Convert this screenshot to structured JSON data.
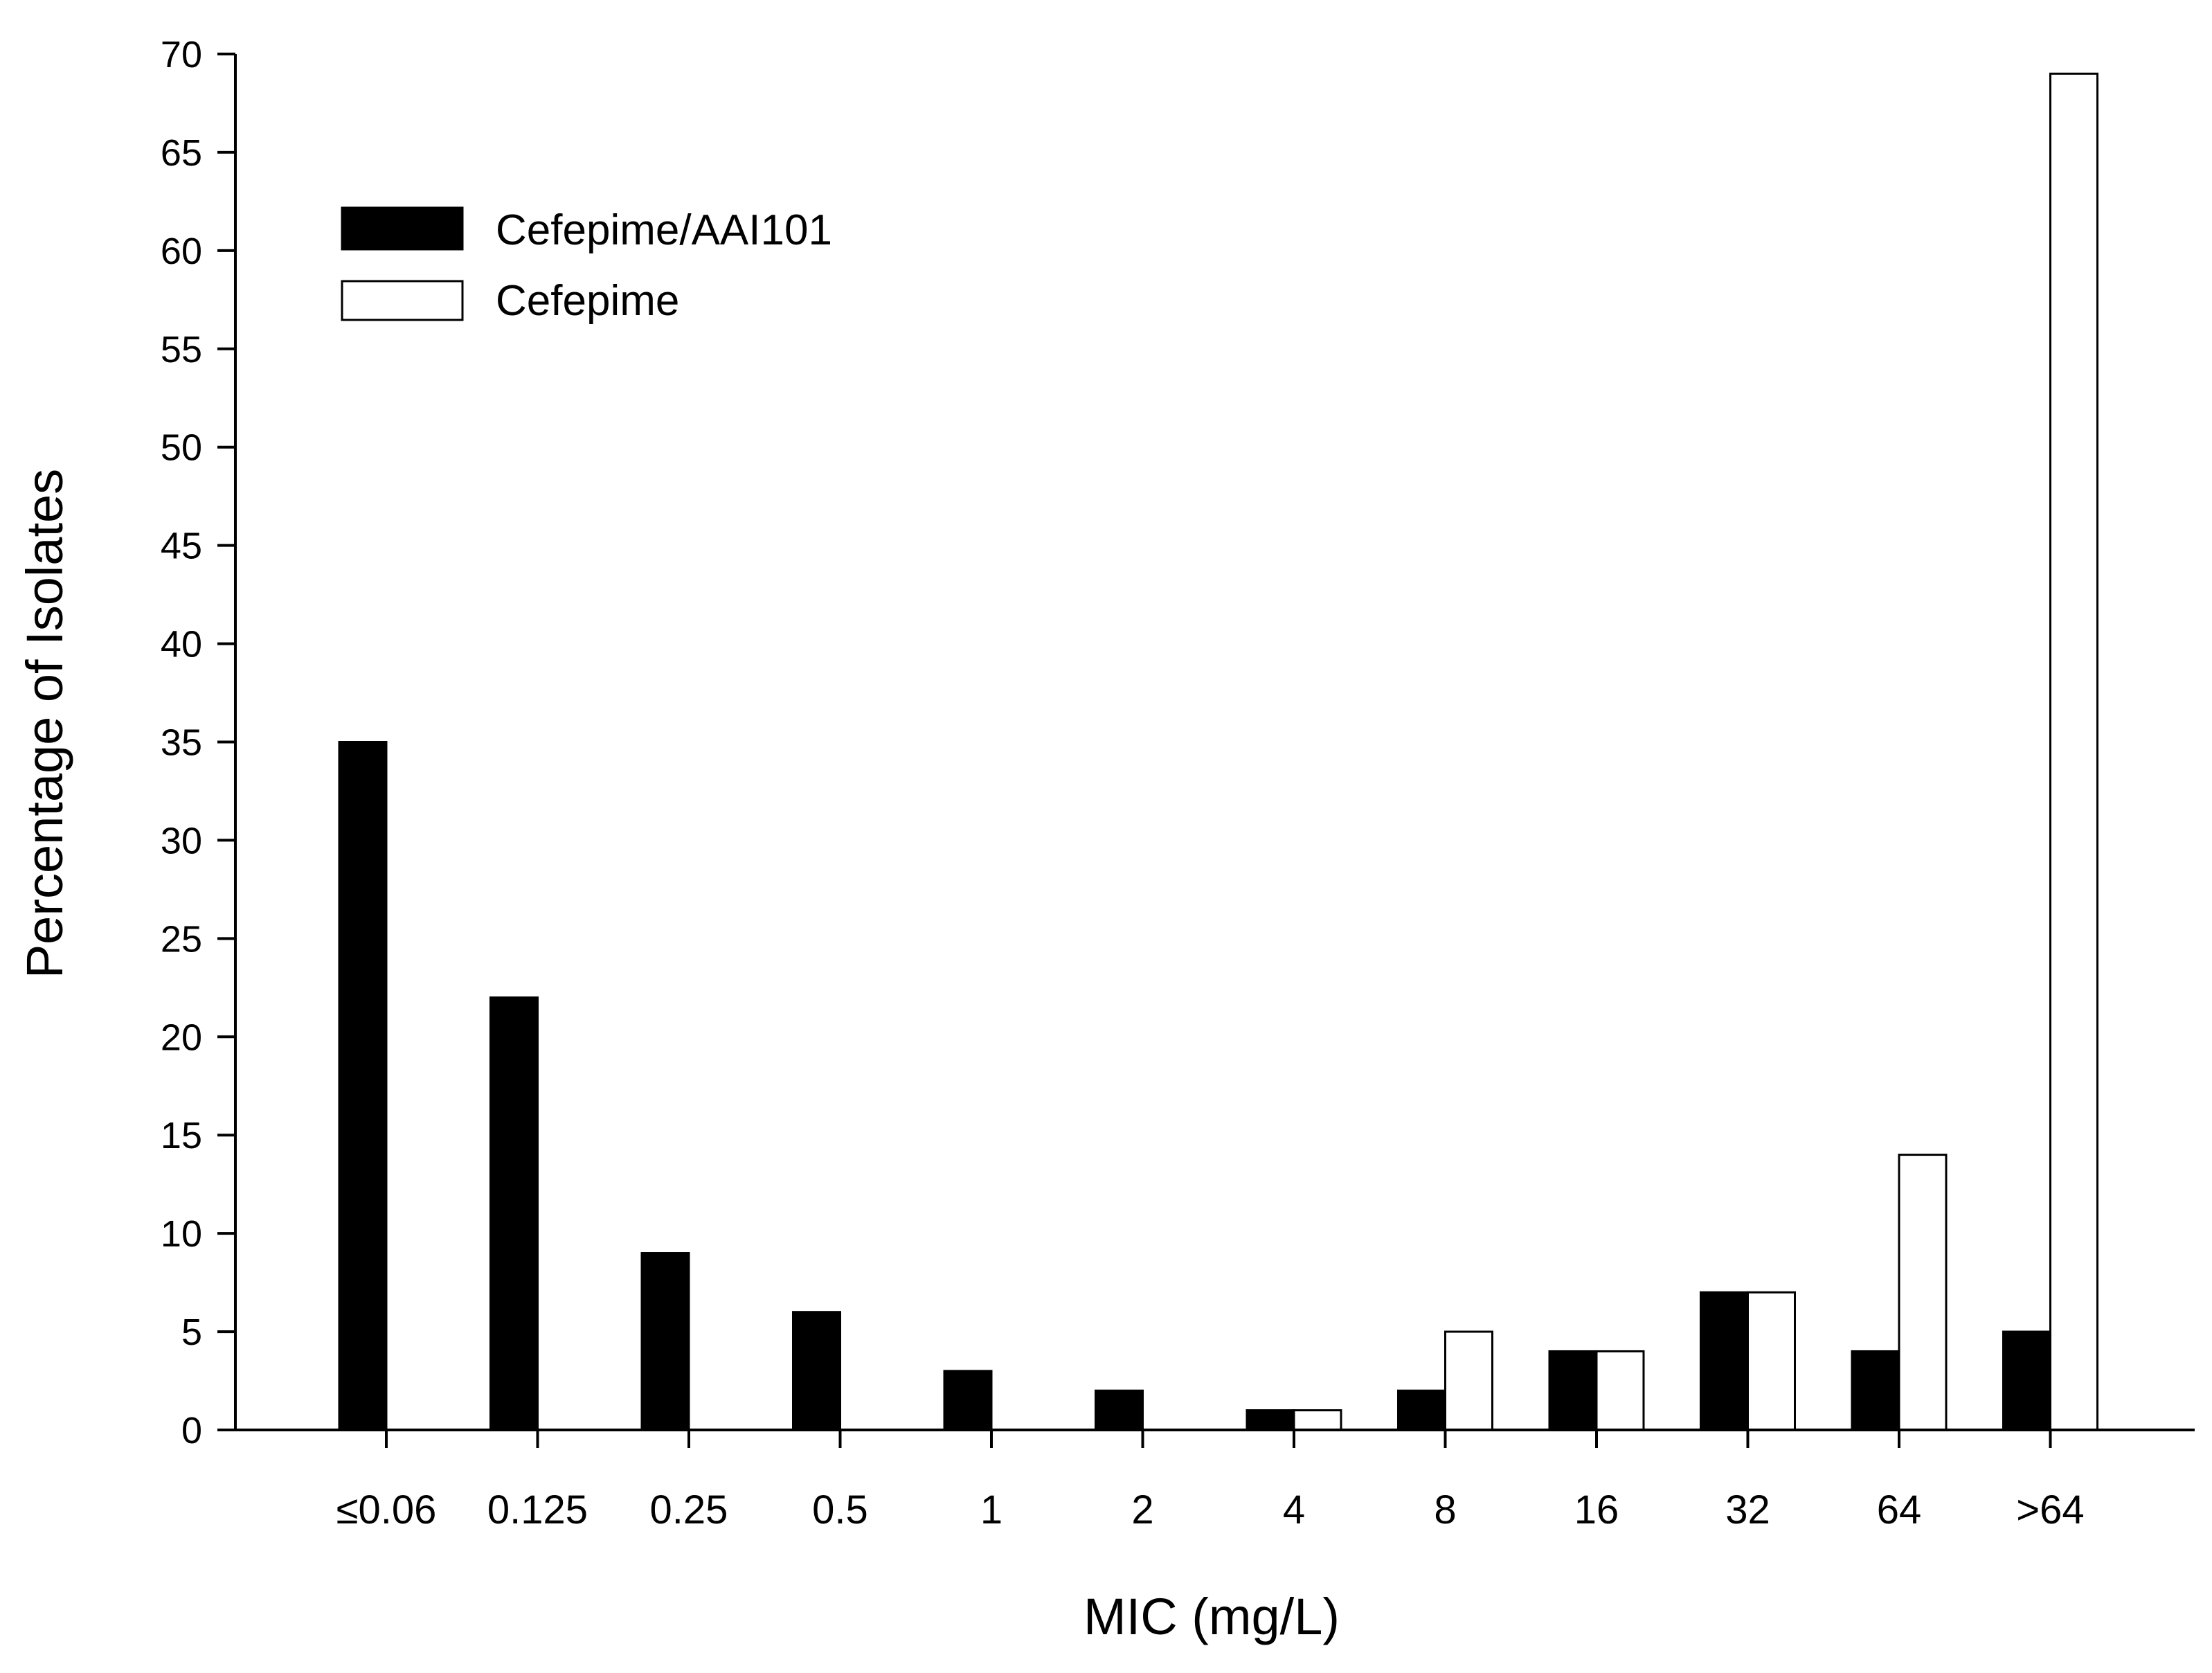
{
  "chart_data": {
    "type": "bar",
    "title": "",
    "xlabel": "MIC (mg/L)",
    "ylabel": "Percentage of Isolates",
    "categories": [
      "≤0.06",
      "0.125",
      "0.25",
      "0.5",
      "1",
      "2",
      "4",
      "8",
      "16",
      "32",
      "64",
      ">64"
    ],
    "series": [
      {
        "name": "Cefepime/AAI101",
        "color": "#000000",
        "values": [
          35,
          22,
          9,
          6,
          3,
          2,
          1,
          2,
          4,
          7,
          4,
          5
        ]
      },
      {
        "name": "Cefepime",
        "color": "#ffffff",
        "values": [
          0,
          0,
          0,
          0,
          0,
          0,
          1,
          5,
          4,
          7,
          14,
          69
        ]
      }
    ],
    "ylim": [
      0,
      70
    ],
    "yticks": [
      0,
      5,
      10,
      15,
      20,
      25,
      30,
      35,
      40,
      45,
      50,
      55,
      60,
      65,
      70
    ],
    "grid": false,
    "legend_position": "top-left"
  }
}
